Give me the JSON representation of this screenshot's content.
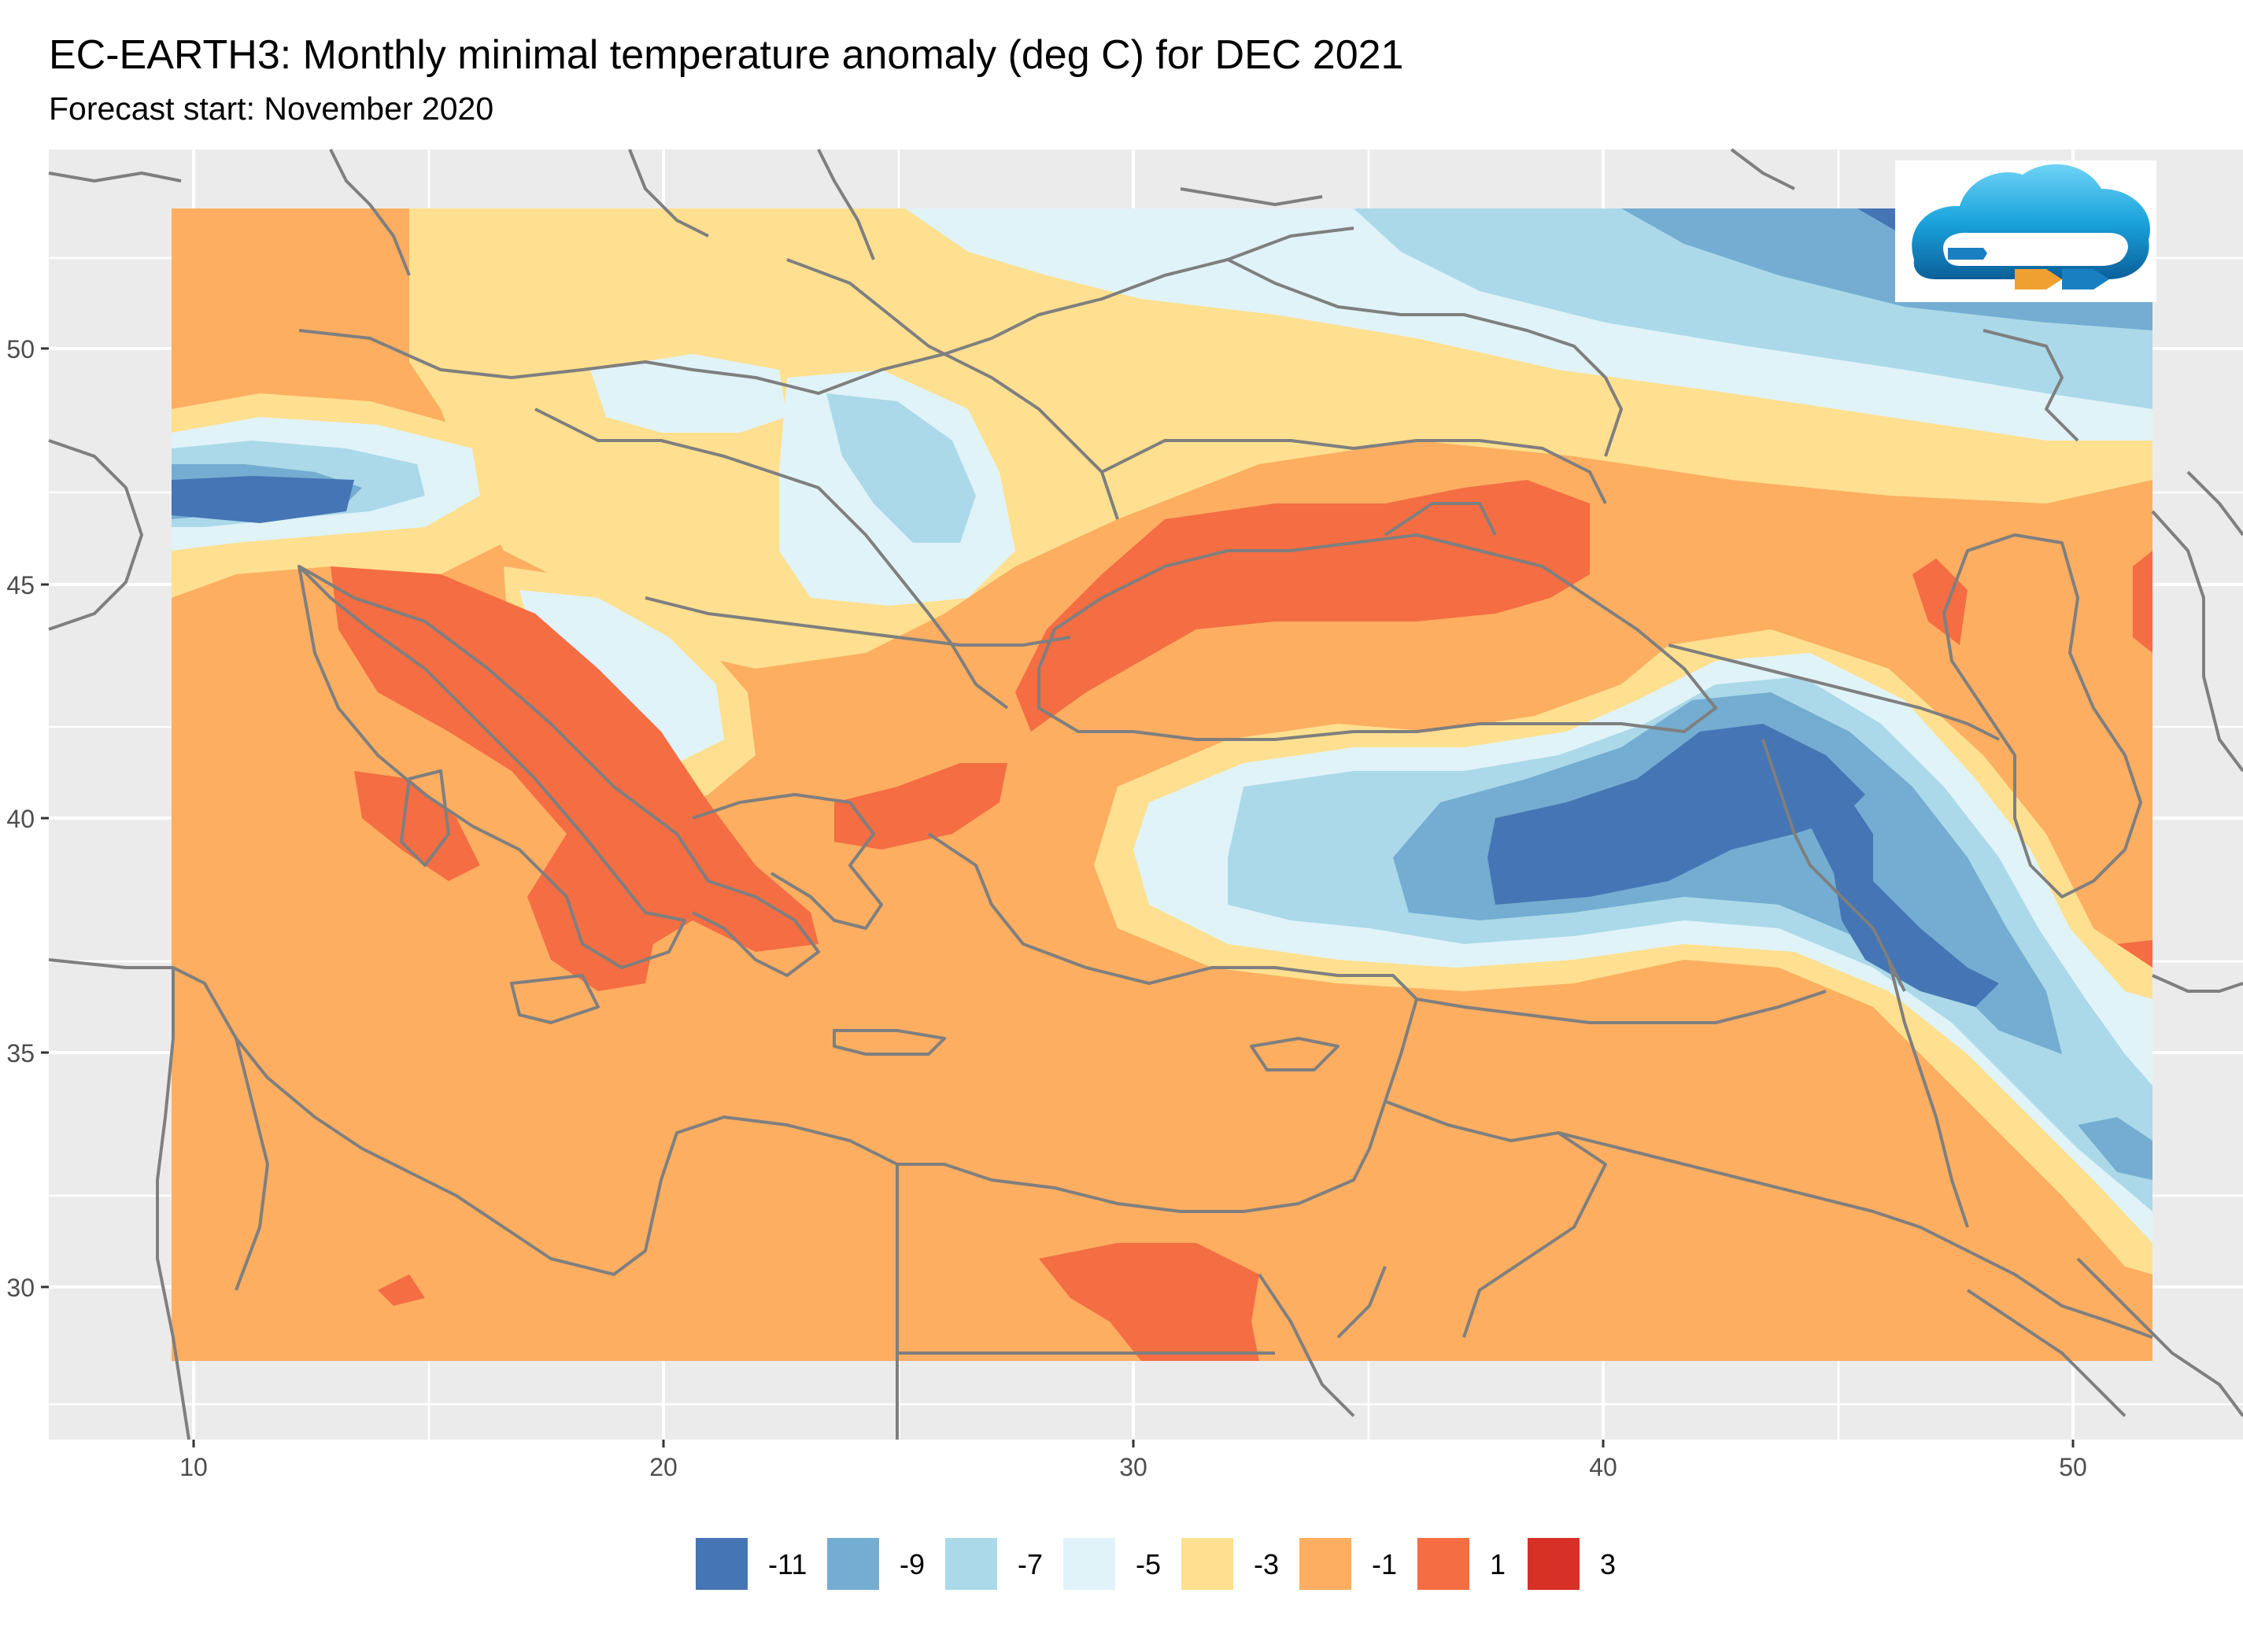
{
  "title": "EC-EARTH3: Monthly minimal temperature anomaly (deg C) for DEC 2021",
  "subtitle": "Forecast start: November 2020",
  "map": {
    "x_ticks": [
      "10",
      "20",
      "30",
      "40",
      "50"
    ],
    "y_ticks": [
      "50",
      "45",
      "40",
      "35",
      "30"
    ],
    "panel_color": "#ebebeb",
    "grid_color": "#ffffff",
    "border_color": "#7f7f7f"
  },
  "logo": {
    "name": "cloud-logo-icon"
  },
  "legend": [
    {
      "label": "-11",
      "color": "#4575b4"
    },
    {
      "label": "-9",
      "color": "#74add1"
    },
    {
      "label": "-7",
      "color": "#abd9e9"
    },
    {
      "label": "-5",
      "color": "#e0f3f8"
    },
    {
      "label": "-3",
      "color": "#fee090"
    },
    {
      "label": "-1",
      "color": "#fdae61"
    },
    {
      "label": "1",
      "color": "#f46d43"
    },
    {
      "label": "3",
      "color": "#d73027"
    }
  ]
}
